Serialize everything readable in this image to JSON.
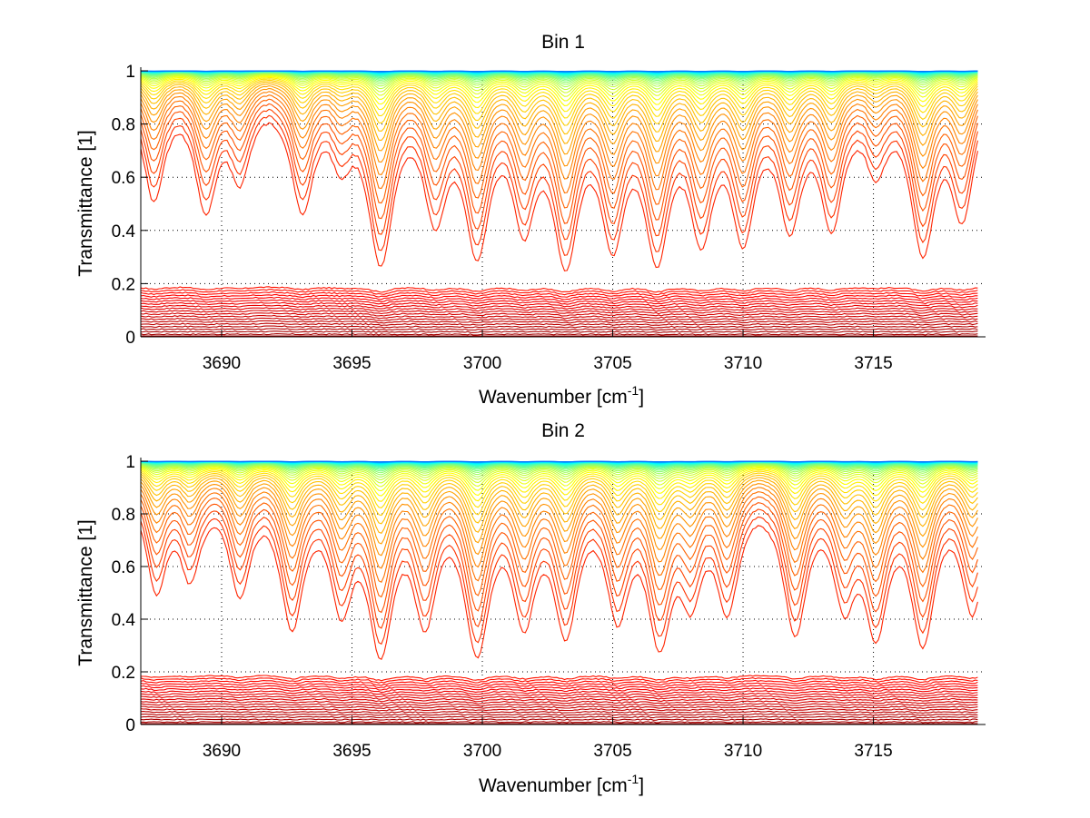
{
  "chart_data": [
    {
      "type": "line",
      "title": "Bin 1",
      "xlabel": "Wavenumber [cm^-1]",
      "xlabel_base": "Wavenumber [cm",
      "xlabel_sup": "-1",
      "xlabel_close": "]",
      "ylabel": "Transmittance [1]",
      "xlim": [
        3686.9,
        3719.3
      ],
      "ylim": [
        0,
        1
      ],
      "x_data_range": [
        3686.9,
        3719.0
      ],
      "xticks": [
        3690,
        3695,
        3700,
        3705,
        3710,
        3715
      ],
      "xtick_labels": [
        "3690",
        "3695",
        "3700",
        "3705",
        "3710",
        "3715"
      ],
      "yticks": [
        0,
        0.2,
        0.4,
        0.6,
        0.8,
        1
      ],
      "ytick_labels": [
        "0",
        "0.2",
        "0.4",
        "0.6",
        "0.8",
        "1"
      ],
      "grid": true,
      "legend": "none",
      "series_count": 60,
      "colormap": "jet (dark red for highest absorber amount → dark blue for lowest)",
      "description": "Family of transmittance spectra for increasing absorber amount; absorption lines listed below (center wavenumber, relative strength). Lowest curves near 0.0–0.2 are nearly flat, top curves near 1.0.",
      "absorption_lines": [
        {
          "center": 3687.4,
          "strength": 1.0
        },
        {
          "center": 3689.4,
          "strength": 1.1
        },
        {
          "center": 3690.7,
          "strength": 0.7
        },
        {
          "center": 3693.1,
          "strength": 1.1
        },
        {
          "center": 3694.6,
          "strength": 0.5
        },
        {
          "center": 3696.1,
          "strength": 2.0
        },
        {
          "center": 3698.2,
          "strength": 1.2
        },
        {
          "center": 3699.8,
          "strength": 1.8
        },
        {
          "center": 3701.6,
          "strength": 1.3
        },
        {
          "center": 3703.2,
          "strength": 2.0
        },
        {
          "center": 3705.0,
          "strength": 1.6
        },
        {
          "center": 3706.7,
          "strength": 1.9
        },
        {
          "center": 3708.4,
          "strength": 1.5
        },
        {
          "center": 3710.0,
          "strength": 1.5
        },
        {
          "center": 3711.8,
          "strength": 1.3
        },
        {
          "center": 3713.4,
          "strength": 1.3
        },
        {
          "center": 3715.1,
          "strength": 0.6
        },
        {
          "center": 3716.9,
          "strength": 1.8
        },
        {
          "center": 3718.4,
          "strength": 1.2
        }
      ]
    },
    {
      "type": "line",
      "title": "Bin 2",
      "xlabel": "Wavenumber [cm^-1]",
      "xlabel_base": "Wavenumber [cm",
      "xlabel_sup": "-1",
      "xlabel_close": "]",
      "ylabel": "Transmittance [1]",
      "xlim": [
        3686.9,
        3719.3
      ],
      "ylim": [
        0,
        1
      ],
      "x_data_range": [
        3686.9,
        3719.0
      ],
      "xticks": [
        3690,
        3695,
        3700,
        3705,
        3710,
        3715
      ],
      "xtick_labels": [
        "3690",
        "3695",
        "3700",
        "3705",
        "3710",
        "3715"
      ],
      "yticks": [
        0,
        0.2,
        0.4,
        0.6,
        0.8,
        1
      ],
      "ytick_labels": [
        "0",
        "0.2",
        "0.4",
        "0.6",
        "0.8",
        "1"
      ],
      "grid": true,
      "legend": "none",
      "series_count": 60,
      "colormap": "jet (dark red for highest absorber amount → cyan/blue for lowest)",
      "description": "Family of transmittance spectra for increasing absorber amount, second bin.",
      "absorption_lines": [
        {
          "center": 3687.5,
          "strength": 1.0
        },
        {
          "center": 3688.8,
          "strength": 0.8
        },
        {
          "center": 3690.7,
          "strength": 1.0
        },
        {
          "center": 3692.7,
          "strength": 1.5
        },
        {
          "center": 3694.6,
          "strength": 1.2
        },
        {
          "center": 3696.1,
          "strength": 2.0
        },
        {
          "center": 3697.8,
          "strength": 1.4
        },
        {
          "center": 3699.8,
          "strength": 2.0
        },
        {
          "center": 3701.6,
          "strength": 1.4
        },
        {
          "center": 3703.2,
          "strength": 1.6
        },
        {
          "center": 3705.2,
          "strength": 1.3
        },
        {
          "center": 3706.8,
          "strength": 1.8
        },
        {
          "center": 3708.0,
          "strength": 1.0
        },
        {
          "center": 3709.4,
          "strength": 1.2
        },
        {
          "center": 3712.0,
          "strength": 1.6
        },
        {
          "center": 3713.9,
          "strength": 1.1
        },
        {
          "center": 3715.1,
          "strength": 1.6
        },
        {
          "center": 3716.9,
          "strength": 1.8
        },
        {
          "center": 3718.8,
          "strength": 1.3
        }
      ]
    }
  ]
}
